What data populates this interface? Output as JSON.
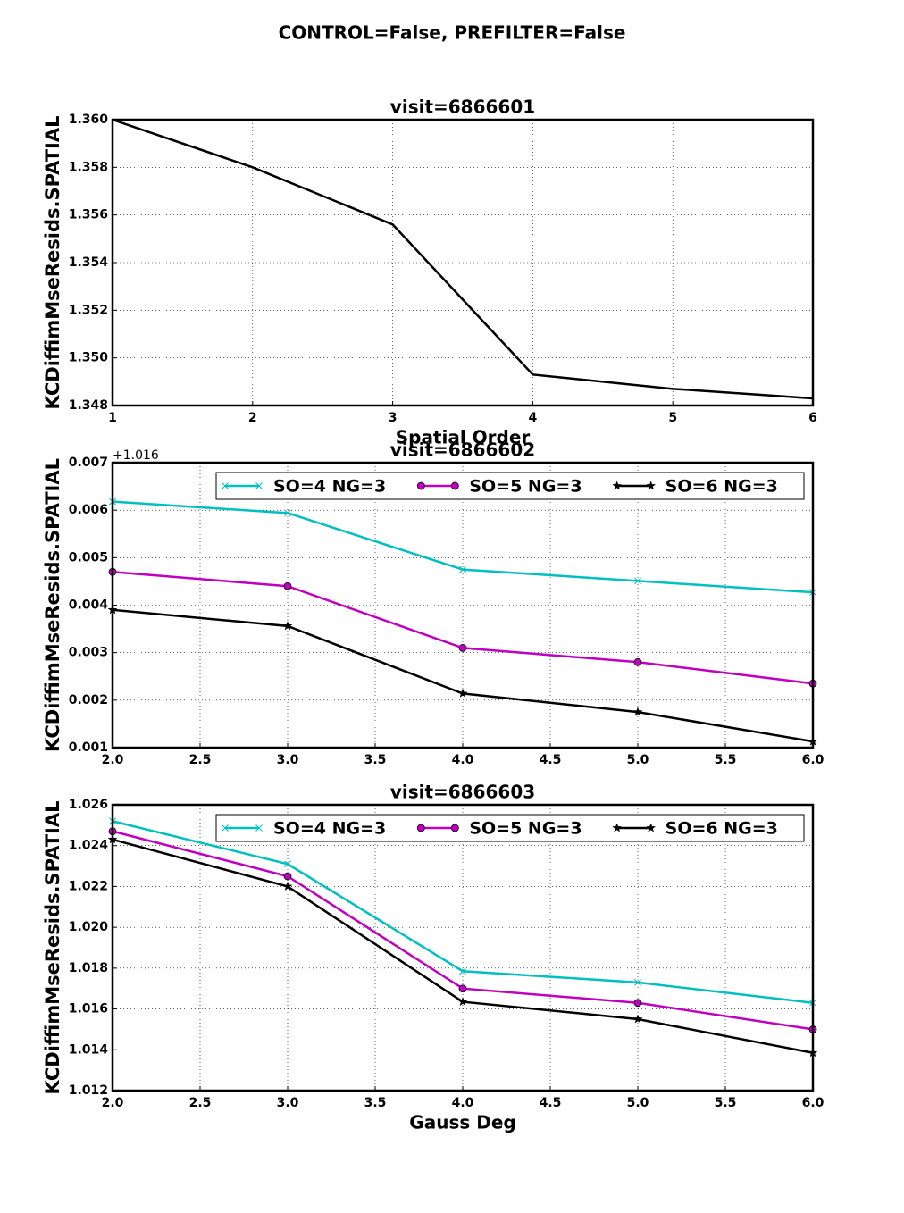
{
  "title": "CONTROL=False, PREFILTER=False",
  "chart_data": [
    {
      "type": "line",
      "title": "visit=6866601",
      "x_label": "Spatial Order",
      "y_label": "KCDiffimMseResids.SPATIAL",
      "x": [
        1,
        2,
        3,
        4,
        5,
        6
      ],
      "values": [
        1.36,
        1.358,
        1.3556,
        1.3493,
        1.3487,
        1.3483
      ],
      "color": "#000000",
      "xlim": [
        1,
        6
      ],
      "xticks": [
        1,
        2,
        3,
        4,
        5,
        6
      ],
      "ylim": [
        1.348,
        1.36
      ],
      "yticks": [
        1.348,
        {
          "value": 1.35,
          "label": "1.350"
        },
        1.352,
        1.354,
        1.356,
        1.358,
        {
          "value": 1.36,
          "label": "1.360"
        }
      ],
      "grid": true
    },
    {
      "type": "line",
      "title": "visit=6866602",
      "y_label": "KCDiffimMseResids.SPATIAL",
      "y_offset_text": "+1.016",
      "x": [
        2,
        3,
        4,
        5,
        6
      ],
      "series": [
        {
          "name": "SO=4 NG=3",
          "color": "#00bfbf",
          "marker": "x",
          "values": [
            0.00618,
            0.00594,
            0.00475,
            0.00451,
            0.00427
          ]
        },
        {
          "name": "SO=5 NG=3",
          "color": "#bf00bf",
          "marker": "o",
          "values": [
            0.0047,
            0.0044,
            0.0031,
            0.0028,
            0.00235
          ]
        },
        {
          "name": "SO=6 NG=3",
          "color": "#000000",
          "marker": "*",
          "values": [
            0.0039,
            0.00356,
            0.00214,
            0.00175,
            0.00113
          ]
        }
      ],
      "xlim": [
        2,
        6
      ],
      "xticks": [
        {
          "value": 2,
          "label": "2.0"
        },
        2.5,
        {
          "value": 3,
          "label": "3.0"
        },
        3.5,
        {
          "value": 4,
          "label": "4.0"
        },
        4.5,
        {
          "value": 5,
          "label": "5.0"
        },
        5.5,
        {
          "value": 6,
          "label": "6.0"
        }
      ],
      "ylim": [
        0.001,
        0.007
      ],
      "yticks": [
        0.001,
        0.002,
        0.003,
        0.004,
        0.005,
        0.006,
        0.007
      ],
      "grid": true,
      "legend": "upper right"
    },
    {
      "type": "line",
      "title": "visit=6866603",
      "x_label": "Gauss Deg",
      "y_label": "KCDiffimMseResids.SPATIAL",
      "x": [
        2,
        3,
        4,
        5,
        6
      ],
      "series": [
        {
          "name": "SO=4 NG=3",
          "color": "#00bfbf",
          "marker": "x",
          "values": [
            1.0252,
            1.0231,
            1.01785,
            1.0173,
            1.0163
          ]
        },
        {
          "name": "SO=5 NG=3",
          "color": "#bf00bf",
          "marker": "o",
          "values": [
            1.0247,
            1.0225,
            1.017,
            1.0163,
            1.015
          ]
        },
        {
          "name": "SO=6 NG=3",
          "color": "#000000",
          "marker": "*",
          "values": [
            1.0243,
            1.022,
            1.01635,
            1.0155,
            1.01385
          ]
        }
      ],
      "xlim": [
        2,
        6
      ],
      "xticks": [
        {
          "value": 2,
          "label": "2.0"
        },
        2.5,
        {
          "value": 3,
          "label": "3.0"
        },
        3.5,
        {
          "value": 4,
          "label": "4.0"
        },
        4.5,
        {
          "value": 5,
          "label": "5.0"
        },
        5.5,
        {
          "value": 6,
          "label": "6.0"
        }
      ],
      "ylim": [
        1.012,
        1.026
      ],
      "yticks": [
        1.012,
        1.014,
        1.016,
        1.018,
        {
          "value": 1.02,
          "label": "1.020"
        },
        1.022,
        1.024,
        1.026
      ],
      "grid": true,
      "legend": "upper right"
    }
  ]
}
